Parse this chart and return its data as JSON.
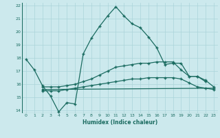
{
  "xlabel": "Humidex (Indice chaleur)",
  "background_color": "#cce9ed",
  "grid_color": "#aad4d9",
  "line_color": "#1a6b60",
  "xlim": [
    -0.5,
    23.5
  ],
  "ylim": [
    13.8,
    22.2
  ],
  "xticks": [
    0,
    1,
    2,
    3,
    4,
    5,
    6,
    7,
    8,
    9,
    10,
    11,
    12,
    13,
    14,
    15,
    16,
    17,
    18,
    19,
    20,
    21,
    22,
    23
  ],
  "yticks": [
    14,
    15,
    16,
    17,
    18,
    19,
    20,
    21,
    22
  ],
  "line1_x": [
    0,
    1,
    2,
    3,
    4,
    5,
    6,
    7,
    8,
    9,
    10,
    11,
    12,
    13,
    14,
    15,
    16,
    17,
    18,
    19,
    20,
    21,
    22
  ],
  "line1_y": [
    17.9,
    17.1,
    15.9,
    15.1,
    13.9,
    14.6,
    14.5,
    18.3,
    19.5,
    20.4,
    21.2,
    21.9,
    21.2,
    20.6,
    20.3,
    19.6,
    18.8,
    17.5,
    17.6,
    17.6,
    16.6,
    16.6,
    16.2
  ],
  "line2_x": [
    2,
    3,
    4,
    5,
    6,
    7,
    8,
    9,
    10,
    11,
    12,
    13,
    14,
    15,
    16,
    17,
    18,
    19,
    20,
    21,
    22,
    23
  ],
  "line2_y": [
    15.8,
    15.8,
    15.8,
    15.9,
    16.0,
    16.2,
    16.4,
    16.7,
    17.0,
    17.3,
    17.4,
    17.5,
    17.6,
    17.6,
    17.7,
    17.7,
    17.7,
    17.1,
    16.6,
    16.6,
    16.3,
    15.8
  ],
  "line3_x": [
    2,
    3,
    4,
    5,
    6,
    7,
    8,
    9,
    10,
    11,
    12,
    13,
    14,
    15,
    16,
    17,
    18,
    19,
    20,
    21,
    22,
    23
  ],
  "line3_y": [
    15.5,
    15.5,
    15.5,
    15.6,
    15.7,
    15.8,
    15.9,
    16.0,
    16.1,
    16.2,
    16.3,
    16.4,
    16.4,
    16.5,
    16.5,
    16.5,
    16.5,
    16.4,
    16.1,
    15.8,
    15.7,
    15.6
  ],
  "line4_x": [
    2,
    23
  ],
  "line4_y": [
    15.6,
    15.7
  ]
}
